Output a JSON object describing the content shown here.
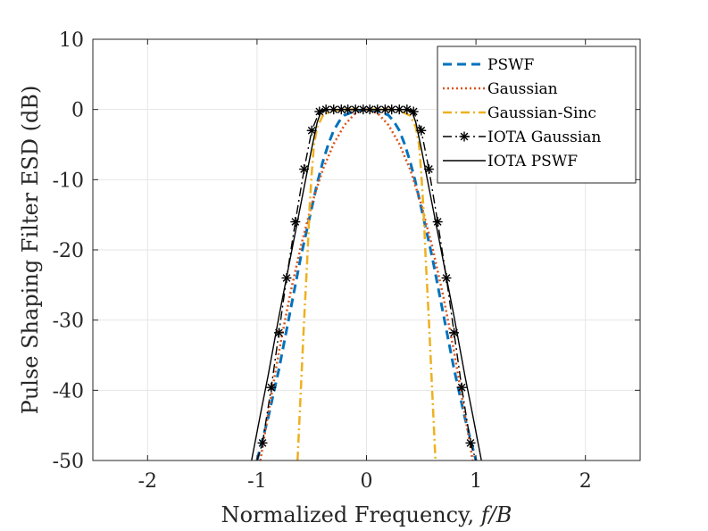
{
  "chart_data": {
    "type": "line",
    "title": "",
    "xlabel_prefix": "Normalized Frequency, ",
    "xlabel_math": "f/B",
    "ylabel": "Pulse Shaping Filter ESD (dB)",
    "xlim": [
      -2.5,
      2.5
    ],
    "ylim": [
      -50,
      10
    ],
    "grid": true,
    "legend_position": "top-right",
    "x_ticks": [
      -2,
      -1,
      0,
      1,
      2
    ],
    "x_tick_labels": [
      "-2",
      "-1",
      "0",
      "1",
      "2"
    ],
    "y_ticks": [
      10,
      0,
      -10,
      -20,
      -30,
      -40,
      -50
    ],
    "y_tick_labels": [
      "10",
      "0",
      "-10",
      "-20",
      "-30",
      "-40",
      "-50"
    ],
    "series": [
      {
        "name": "PSWF",
        "color": "#0072BD",
        "style": "dashed",
        "marker": "none",
        "x": [
          -1.0,
          -0.9,
          -0.8,
          -0.7,
          -0.6,
          -0.5,
          -0.45,
          -0.4,
          -0.35,
          -0.3,
          -0.25,
          -0.2,
          -0.1,
          0.0,
          0.1,
          0.2,
          0.25,
          0.3,
          0.35,
          0.4,
          0.45,
          0.5,
          0.6,
          0.7,
          0.8,
          0.9,
          1.0
        ],
        "y": [
          -50,
          -44,
          -37,
          -29,
          -21,
          -14,
          -10.5,
          -7.5,
          -5,
          -3,
          -1.7,
          -0.8,
          -0.2,
          0,
          -0.2,
          -0.8,
          -1.7,
          -3,
          -5,
          -7.5,
          -10.5,
          -14,
          -21,
          -29,
          -37,
          -44,
          -50
        ]
      },
      {
        "name": "Gaussian",
        "color": "#D95319",
        "style": "dotted",
        "marker": "none",
        "x": [
          -0.97,
          -0.9,
          -0.8,
          -0.7,
          -0.6,
          -0.5,
          -0.4,
          -0.3,
          -0.2,
          -0.1,
          0.0,
          0.1,
          0.2,
          0.3,
          0.4,
          0.5,
          0.6,
          0.7,
          0.8,
          0.9,
          0.97
        ],
        "y": [
          -50,
          -43.5,
          -34.5,
          -26.5,
          -19.5,
          -13.5,
          -8.6,
          -4.9,
          -2.2,
          -0.5,
          0,
          -0.5,
          -2.2,
          -4.9,
          -8.6,
          -13.5,
          -19.5,
          -26.5,
          -34.5,
          -43.5,
          -50
        ]
      },
      {
        "name": "Gaussian-Sinc",
        "color": "#EDB120",
        "style": "dashdot",
        "marker": "none",
        "x": [
          -0.63,
          -0.6,
          -0.57,
          -0.54,
          -0.52,
          -0.5,
          -0.48,
          -0.45,
          -0.4,
          -0.3,
          -0.2,
          -0.1,
          0.0,
          0.1,
          0.2,
          0.3,
          0.4,
          0.45,
          0.48,
          0.5,
          0.52,
          0.54,
          0.57,
          0.6,
          0.63
        ],
        "y": [
          -50,
          -40,
          -30,
          -21,
          -14,
          -9,
          -5,
          -2.5,
          -0.9,
          -0.1,
          0,
          0,
          0,
          0,
          0,
          -0.1,
          -0.9,
          -2.5,
          -5,
          -9,
          -14,
          -21,
          -30,
          -40,
          -50
        ]
      },
      {
        "name": "IOTA Gaussian",
        "color": "#000000",
        "style": "dashdot",
        "marker": "star",
        "x": [
          -1.0,
          -0.95,
          -0.87,
          -0.8,
          -0.73,
          -0.65,
          -0.57,
          -0.5,
          -0.43,
          -0.37,
          -0.3,
          -0.23,
          -0.17,
          -0.1,
          -0.03,
          0.03,
          0.1,
          0.17,
          0.23,
          0.3,
          0.37,
          0.43,
          0.5,
          0.57,
          0.65,
          0.73,
          0.8,
          0.87,
          0.95,
          1.0
        ],
        "y": [
          -50,
          -47.5,
          -39.6,
          -31.8,
          -24,
          -16,
          -8.5,
          -3,
          -0.3,
          0,
          0,
          0,
          0,
          0,
          0,
          0,
          0,
          0,
          0,
          0,
          0,
          -0.3,
          -3,
          -8.5,
          -16,
          -24,
          -31.8,
          -39.6,
          -47.5,
          -50
        ],
        "marker_x": [
          -0.95,
          -0.87,
          -0.8,
          -0.73,
          -0.65,
          -0.57,
          -0.5,
          -0.43,
          -0.37,
          -0.3,
          -0.23,
          -0.17,
          -0.1,
          -0.03,
          0.03,
          0.1,
          0.17,
          0.23,
          0.3,
          0.37,
          0.43,
          0.5,
          0.57,
          0.65,
          0.73,
          0.8,
          0.87,
          0.95
        ],
        "marker_y": [
          -47.5,
          -39.6,
          -31.8,
          -24,
          -16,
          -8.5,
          -3,
          -0.3,
          0,
          0,
          0,
          0,
          0,
          0,
          0,
          0,
          0,
          0,
          0,
          0,
          -0.3,
          -3,
          -8.5,
          -16,
          -24,
          -31.8,
          -39.6,
          -47.5
        ]
      },
      {
        "name": "IOTA PSWF",
        "color": "#000000",
        "style": "solid",
        "marker": "none",
        "x": [
          -1.05,
          -0.97,
          -0.9,
          -0.8,
          -0.7,
          -0.6,
          -0.5,
          -0.45,
          -0.42,
          -0.38,
          -0.3,
          -0.2,
          -0.1,
          0.0,
          0.1,
          0.2,
          0.3,
          0.38,
          0.42,
          0.45,
          0.5,
          0.6,
          0.7,
          0.8,
          0.9,
          0.97,
          1.05
        ],
        "y": [
          -50,
          -43.5,
          -38,
          -29.5,
          -21.5,
          -13.5,
          -5.5,
          -1.8,
          -0.5,
          0,
          0,
          0,
          0,
          0,
          0,
          0,
          0,
          0,
          -0.5,
          -1.8,
          -5.5,
          -13.5,
          -21.5,
          -29.5,
          -38,
          -43.5,
          -50
        ]
      }
    ]
  }
}
